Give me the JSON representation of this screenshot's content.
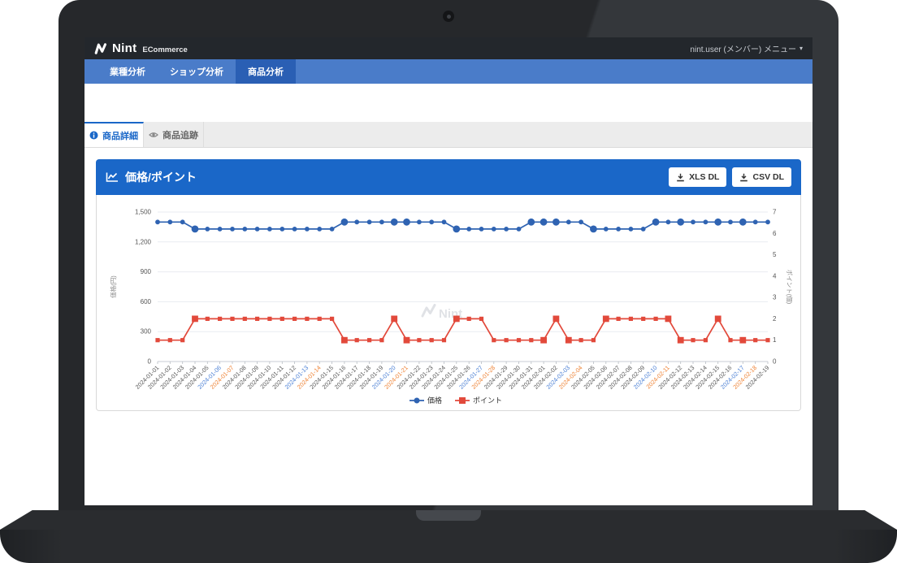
{
  "header": {
    "brand": "Nint",
    "product": "ECommerce",
    "user_menu": "nint.user (メンバー) メニュー",
    "caret": "▾"
  },
  "nav": {
    "items": [
      {
        "label": "業種分析",
        "active": false
      },
      {
        "label": "ショップ分析",
        "active": false
      },
      {
        "label": "商品分析",
        "active": true
      }
    ]
  },
  "tabs": [
    {
      "label": "商品詳細",
      "icon": "info-icon",
      "active": true
    },
    {
      "label": "商品追跡",
      "icon": "eye-icon",
      "active": false
    }
  ],
  "card": {
    "title": "価格/ポイント",
    "title_icon": "line-chart-icon",
    "buttons": [
      {
        "label": "XLS DL",
        "icon": "download-icon"
      },
      {
        "label": "CSV DL",
        "icon": "download-icon"
      }
    ]
  },
  "chart_data": {
    "type": "line",
    "title": "価格/ポイント",
    "x": [
      "2024-01-01",
      "2024-01-02",
      "2024-01-03",
      "2024-01-04",
      "2024-01-05",
      "2024-01-06",
      "2024-01-07",
      "2024-01-08",
      "2024-01-09",
      "2024-01-10",
      "2024-01-11",
      "2024-01-12",
      "2024-01-13",
      "2024-01-14",
      "2024-01-15",
      "2024-01-16",
      "2024-01-17",
      "2024-01-18",
      "2024-01-19",
      "2024-01-20",
      "2024-01-21",
      "2024-01-22",
      "2024-01-23",
      "2024-01-24",
      "2024-01-25",
      "2024-01-26",
      "2024-01-27",
      "2024-01-28",
      "2024-01-29",
      "2024-01-30",
      "2024-01-31",
      "2024-02-01",
      "2024-02-02",
      "2024-02-03",
      "2024-02-04",
      "2024-02-05",
      "2024-02-06",
      "2024-02-07",
      "2024-02-08",
      "2024-02-09",
      "2024-02-10",
      "2024-02-11",
      "2024-02-12",
      "2024-02-13",
      "2024-02-14",
      "2024-02-15",
      "2024-02-16",
      "2024-02-17",
      "2024-02-18",
      "2024-02-19"
    ],
    "series": [
      {
        "name": "価格",
        "axis": "left",
        "color": "#2f63b2",
        "marker": "circle",
        "values": [
          1400,
          1400,
          1400,
          1330,
          1330,
          1330,
          1330,
          1330,
          1330,
          1330,
          1330,
          1330,
          1330,
          1330,
          1330,
          1400,
          1400,
          1400,
          1400,
          1400,
          1400,
          1400,
          1400,
          1400,
          1330,
          1330,
          1330,
          1330,
          1330,
          1330,
          1400,
          1400,
          1400,
          1400,
          1400,
          1330,
          1330,
          1330,
          1330,
          1330,
          1400,
          1400,
          1400,
          1400,
          1400,
          1400,
          1400,
          1400,
          1400,
          1400
        ],
        "emphasis_idx": [
          3,
          15,
          19,
          20,
          24,
          30,
          31,
          32,
          35,
          40,
          42,
          45,
          47
        ]
      },
      {
        "name": "ポイント",
        "axis": "right",
        "color": "#e2493b",
        "marker": "square",
        "values": [
          1,
          1,
          1,
          2,
          2,
          2,
          2,
          2,
          2,
          2,
          2,
          2,
          2,
          2,
          2,
          1,
          1,
          1,
          1,
          2,
          1,
          1,
          1,
          1,
          2,
          2,
          2,
          1,
          1,
          1,
          1,
          1,
          2,
          1,
          1,
          1,
          2,
          2,
          2,
          2,
          2,
          2,
          1,
          1,
          1,
          2,
          1,
          1,
          1,
          1
        ],
        "emphasis_idx": [
          3,
          15,
          19,
          20,
          24,
          31,
          32,
          33,
          36,
          41,
          42,
          45,
          47
        ]
      }
    ],
    "left_axis": {
      "label": "価格(円)",
      "min": 0,
      "max": 1500,
      "ticks": [
        0,
        300,
        600,
        900,
        1200,
        1500
      ],
      "tick_labels": [
        "0",
        "300",
        "600",
        "900",
        "1,200",
        "1,500"
      ]
    },
    "right_axis": {
      "label": "ポイント(個)",
      "min": 0,
      "max": 7,
      "ticks": [
        0,
        1,
        2,
        3,
        4,
        5,
        6,
        7
      ]
    },
    "x_label_colors": {
      "saturday": "#4a7fd4",
      "sunday": "#ee8234",
      "default": "#555555"
    },
    "grid": true,
    "legend_position": "bottom",
    "watermark": "Nint"
  }
}
